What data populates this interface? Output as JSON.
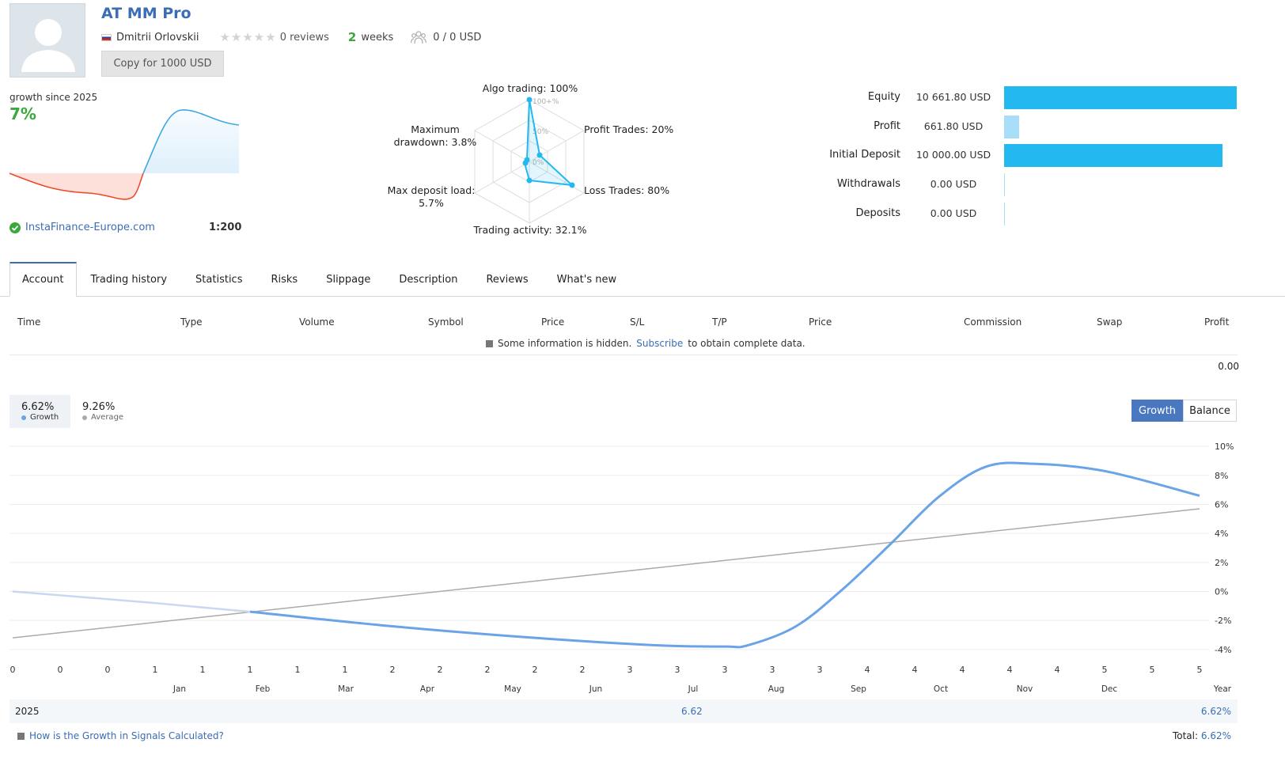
{
  "header": {
    "title": "AT MM Pro",
    "author": "Dmitrii Orlovskii",
    "reviews": "0 reviews",
    "weeks_num": "2",
    "weeks_label": "weeks",
    "subscribers": "0 / 0 USD",
    "copy_button": "Copy for 1000 USD"
  },
  "summary": {
    "growth_since": "growth since 2025",
    "growth_pct": "7%",
    "broker": "InstaFinance-Europe.com",
    "leverage": "1:200"
  },
  "radar": {
    "algo": "Algo trading: 100%",
    "profit_trades": "Profit Trades: 20%",
    "loss_trades": "Loss Trades: 80%",
    "activity": "Trading activity: 32.1%",
    "max_load_1": "Max deposit load:",
    "max_load_2": "5.7%",
    "drawdown_1": "Maximum",
    "drawdown_2": "drawdown: 3.8%",
    "scale_100": "100+%",
    "scale_50": "50%",
    "scale_0": "0%"
  },
  "finance": {
    "equity_label": "Equity",
    "equity_value": "10 661.80 USD",
    "profit_label": "Profit",
    "profit_value": "661.80 USD",
    "initial_label": "Initial Deposit",
    "initial_value": "10 000.00 USD",
    "withdrawals_label": "Withdrawals",
    "withdrawals_value": "0.00 USD",
    "deposits_label": "Deposits",
    "deposits_value": "0.00 USD",
    "colors": {
      "strong": "#23b8ef",
      "light": "#a8def7"
    }
  },
  "tabs": [
    "Account",
    "Trading history",
    "Statistics",
    "Risks",
    "Slippage",
    "Description",
    "Reviews",
    "What's new"
  ],
  "table": {
    "headers": [
      "Time",
      "Type",
      "Volume",
      "Symbol",
      "Price",
      "S/L",
      "T/P",
      "Price",
      "Commission",
      "Swap",
      "Profit"
    ],
    "hidden_prefix": "Some information is hidden.",
    "hidden_link": "Subscribe",
    "hidden_suffix": "to obtain complete data.",
    "total": "0.00"
  },
  "chart_controls": {
    "growth_value": "6.62%",
    "growth_label": "Growth",
    "average_value": "9.26%",
    "average_label": "Average",
    "toggle_growth": "Growth",
    "toggle_balance": "Balance"
  },
  "chart_data": {
    "type": "line",
    "title": "",
    "ylabel": "",
    "ylim": [
      -4.5,
      10.5
    ],
    "yticks": [
      10,
      8,
      6,
      4,
      2,
      0,
      -2,
      -4
    ],
    "ytick_labels": [
      "10%",
      "8%",
      "6%",
      "4%",
      "2%",
      "0%",
      "-2%",
      "-4%"
    ],
    "trade_index_labels": [
      "0",
      "0",
      "0",
      "1",
      "1",
      "1",
      "1",
      "1",
      "2",
      "2",
      "2",
      "2",
      "2",
      "3",
      "3",
      "3",
      "3",
      "3",
      "4",
      "4",
      "4",
      "4",
      "4",
      "5",
      "5",
      "5"
    ],
    "months": [
      "Jan",
      "Feb",
      "Mar",
      "Apr",
      "May",
      "Jun",
      "Jul",
      "Aug",
      "Sep",
      "Oct",
      "Nov",
      "Dec",
      "Year"
    ],
    "series": [
      {
        "name": "Growth",
        "color": "#6ba3e8",
        "x": [
          0,
          3,
          5,
          8,
          11,
          13.5,
          15,
          15.5,
          16.5,
          17.5,
          18.5,
          19.5,
          20.5,
          21.5,
          23,
          25
        ],
        "values": [
          0,
          -0.8,
          -1.4,
          -2.4,
          -3.2,
          -3.7,
          -3.8,
          -3.7,
          -2.4,
          0.2,
          3.3,
          6.5,
          8.6,
          8.8,
          8.3,
          6.6
        ]
      },
      {
        "name": "Average",
        "color": "#aaaaaa",
        "x": [
          0,
          25
        ],
        "values": [
          -3.2,
          5.7
        ]
      }
    ],
    "year_row": {
      "year": "2025",
      "jul_value": "6.62",
      "year_value": "6.62%"
    }
  },
  "footer": {
    "help_link": "How is the Growth in Signals Calculated?",
    "total_label": "Total:",
    "total_value": "6.62%"
  }
}
